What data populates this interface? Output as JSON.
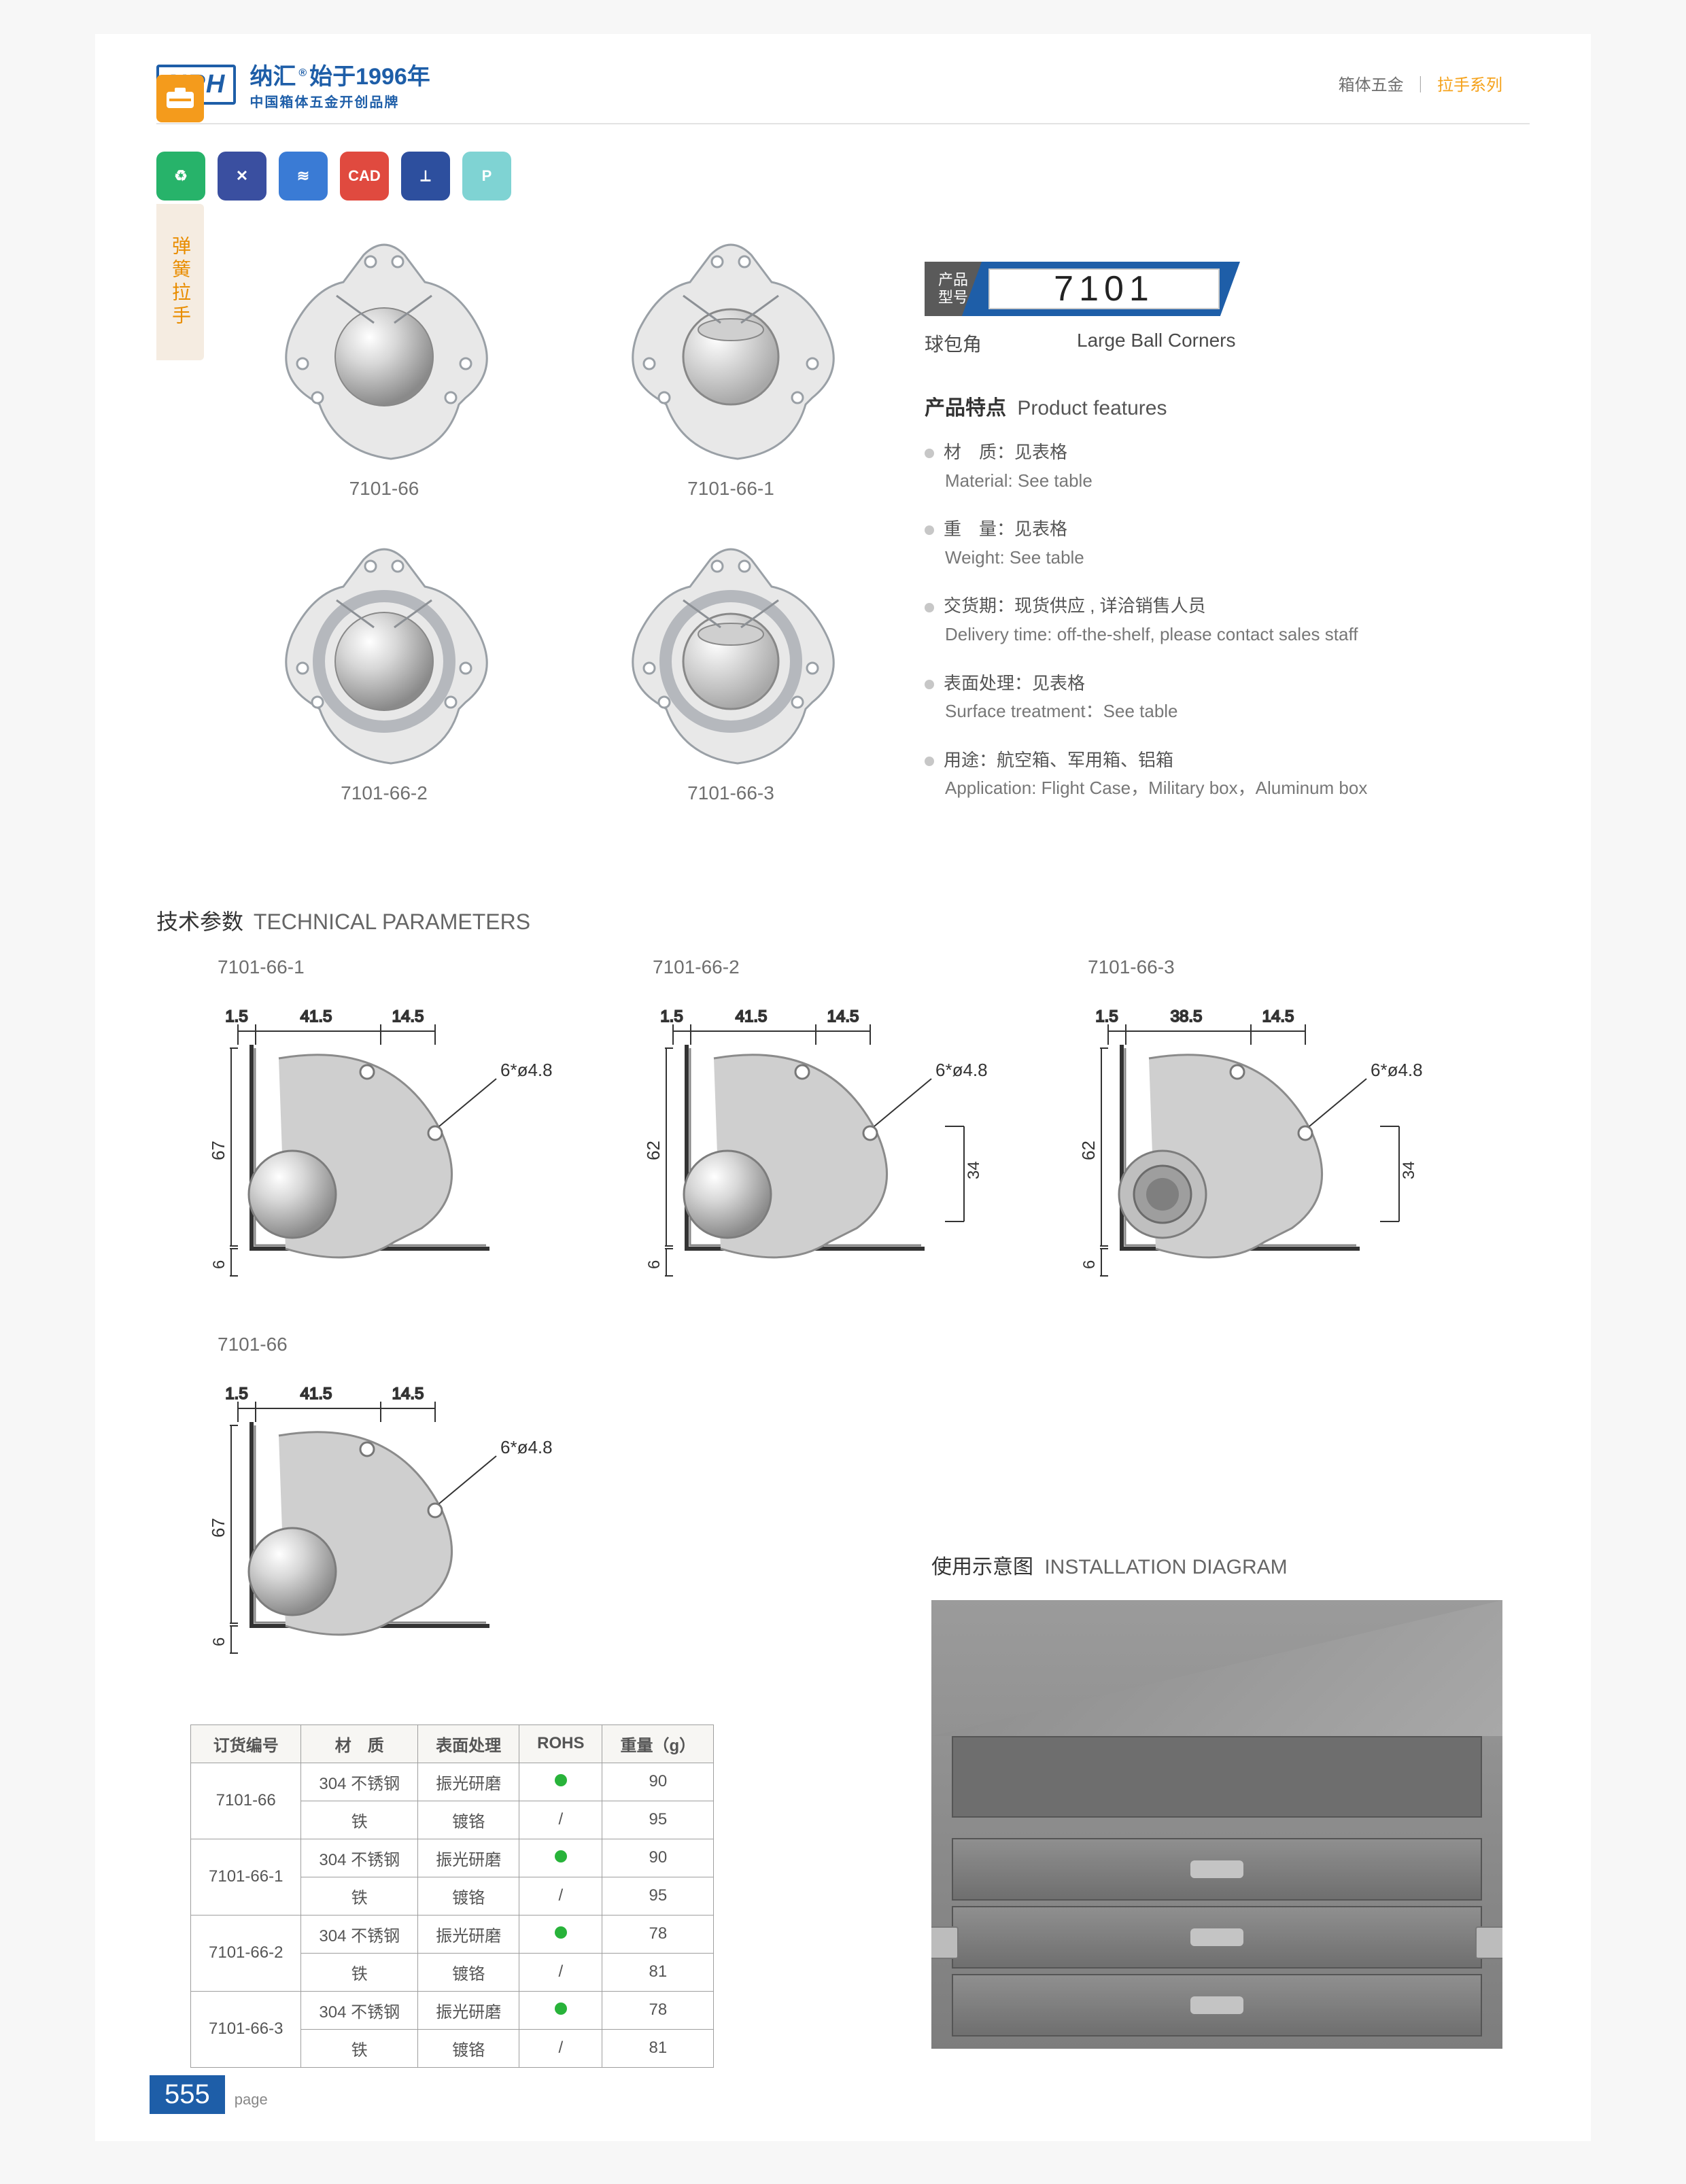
{
  "header": {
    "logo_text": "NRH",
    "brand_cn": "纳汇",
    "brand_trademark": "®",
    "brand_since": "始于1996年",
    "brand_sub": "中国箱体五金开创品牌",
    "right_a": "箱体五金",
    "right_b": "拉手系列"
  },
  "side_tab": "弹簧拉手",
  "icon_badges": [
    {
      "bg": "#27b36a",
      "glyph": "♻"
    },
    {
      "bg": "#3a4fa0",
      "glyph": "✕"
    },
    {
      "bg": "#3a7bd5",
      "glyph": "≋"
    },
    {
      "bg": "#e04a3f",
      "glyph": "CAD"
    },
    {
      "bg": "#2d4f9e",
      "glyph": "⟂"
    },
    {
      "bg": "#7fd3d3",
      "glyph": "P"
    }
  ],
  "products": [
    {
      "code": "7101-66"
    },
    {
      "code": "7101-66-1"
    },
    {
      "code": "7101-66-2"
    },
    {
      "code": "7101-66-3"
    }
  ],
  "model": {
    "label_l1": "产品",
    "label_l2": "型号",
    "number": "7101",
    "cn_name": "球包角",
    "en_name": "Large Ball Corners"
  },
  "features_title": {
    "cn": "产品特点",
    "en": "Product features"
  },
  "features": [
    {
      "cn": "材　质：见表格",
      "en": "Material: See table"
    },
    {
      "cn": "重　量：见表格",
      "en": "Weight: See table"
    },
    {
      "cn": "交货期：现货供应 , 详洽销售人员",
      "en": "Delivery time: off-the-shelf, please contact sales staff"
    },
    {
      "cn": "表面处理：见表格",
      "en": "Surface treatment：See table"
    },
    {
      "cn": "用途：航空箱、军用箱、铝箱",
      "en": "Application: Flight Case，Military box，Aluminum box"
    }
  ],
  "tech_title": {
    "cn": "技术参数",
    "en": "TECHNICAL PARAMETERS"
  },
  "tech_drawings": [
    {
      "code": "7101-66-1",
      "d1": "1.5",
      "d2": "41.5",
      "d3": "14.5",
      "note": "6*ø4.8",
      "h": "67",
      "b": "6",
      "side": ""
    },
    {
      "code": "7101-66-2",
      "d1": "1.5",
      "d2": "41.5",
      "d3": "14.5",
      "note": "6*ø4.8",
      "h": "62",
      "b": "6",
      "side": "34"
    },
    {
      "code": "7101-66-3",
      "d1": "1.5",
      "d2": "38.5",
      "d3": "14.5",
      "note": "6*ø4.8",
      "h": "62",
      "b": "6",
      "side": "34"
    },
    {
      "code": "7101-66",
      "d1": "1.5",
      "d2": "41.5",
      "d3": "14.5",
      "note": "6*ø4.8",
      "h": "67",
      "b": "6",
      "side": ""
    }
  ],
  "spec_table": {
    "headers": [
      "订货编号",
      "材　质",
      "表面处理",
      "ROHS",
      "重量（g）"
    ],
    "rows": [
      {
        "code": "7101-66",
        "mat": "304 不锈钢",
        "surf": "振光研磨",
        "rohs": "dot",
        "wt": "90"
      },
      {
        "code": "",
        "mat": "铁",
        "surf": "镀铬",
        "rohs": "/",
        "wt": "95"
      },
      {
        "code": "7101-66-1",
        "mat": "304 不锈钢",
        "surf": "振光研磨",
        "rohs": "dot",
        "wt": "90"
      },
      {
        "code": "",
        "mat": "铁",
        "surf": "镀铬",
        "rohs": "/",
        "wt": "95"
      },
      {
        "code": "7101-66-2",
        "mat": "304 不锈钢",
        "surf": "振光研磨",
        "rohs": "dot",
        "wt": "78"
      },
      {
        "code": "",
        "mat": "铁",
        "surf": "镀铬",
        "rohs": "/",
        "wt": "81"
      },
      {
        "code": "7101-66-3",
        "mat": "304 不锈钢",
        "surf": "振光研磨",
        "rohs": "dot",
        "wt": "78"
      },
      {
        "code": "",
        "mat": "铁",
        "surf": "镀铬",
        "rohs": "/",
        "wt": "81"
      }
    ]
  },
  "install_title": {
    "cn": "使用示意图",
    "en": "INSTALLATION DIAGRAM"
  },
  "page_number": "555",
  "page_label": "page",
  "colors": {
    "brand_blue": "#1e5ea8",
    "accent_orange": "#f5a21b",
    "rohs_green": "#28b33a",
    "body_fill": "#e8e8e8",
    "body_stroke": "#9aa0a6"
  }
}
